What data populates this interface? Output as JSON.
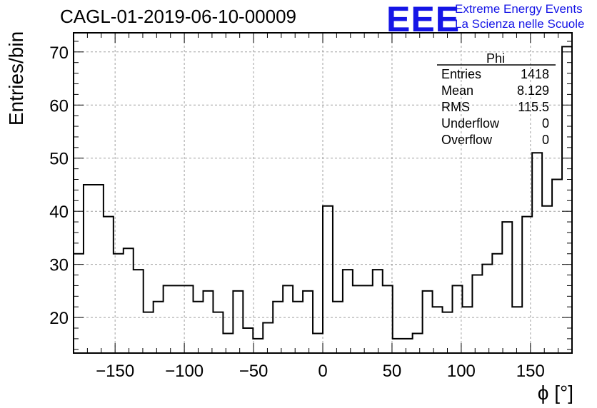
{
  "header": {
    "title": "CAGL-01-2019-06-10-00009",
    "logo_mark": "EEE",
    "logo_line1": "Extreme Energy Events",
    "logo_line2": "La Scienza nelle Scuole"
  },
  "colors": {
    "logo": "#1515e6",
    "line": "#000000",
    "grid": "#a0a0a0"
  },
  "stats_box": {
    "name": "Phi",
    "rows": [
      {
        "label": "Entries",
        "value": "1418"
      },
      {
        "label": "Mean",
        "value": "8.129"
      },
      {
        "label": "RMS",
        "value": "115.5"
      },
      {
        "label": "Underflow",
        "value": "0"
      },
      {
        "label": "Overflow",
        "value": "0"
      }
    ]
  },
  "chart_data": {
    "type": "bar",
    "style": "step-histogram",
    "title": "CAGL-01-2019-06-10-00009",
    "xlabel": "ϕ [°]",
    "ylabel": "Entries/bin",
    "xlim": [
      -180,
      180
    ],
    "ylim": [
      13.3,
      73.6
    ],
    "bin_width": 7.2,
    "bin_edges_start": -180,
    "values": [
      32,
      45,
      45,
      39,
      32,
      33,
      29,
      21,
      23,
      26,
      26,
      26,
      23,
      25,
      21,
      17,
      25,
      18,
      16,
      19,
      23,
      26,
      23,
      25,
      17,
      41,
      23,
      29,
      26,
      26,
      29,
      26,
      16,
      16,
      17,
      25,
      22,
      21,
      26,
      22,
      28,
      30,
      32,
      38,
      22,
      39,
      51,
      41,
      46,
      71
    ],
    "xticks": [
      -150,
      -100,
      -50,
      0,
      50,
      100,
      150
    ],
    "xtick_labels": [
      "−150",
      "−100",
      "−50",
      "0",
      "50",
      "100",
      "150"
    ],
    "yticks": [
      20,
      30,
      40,
      50,
      60,
      70
    ],
    "ytick_labels": [
      "20",
      "30",
      "40",
      "50",
      "60",
      "70"
    ],
    "grid": true,
    "legend": "top-right stats box"
  }
}
